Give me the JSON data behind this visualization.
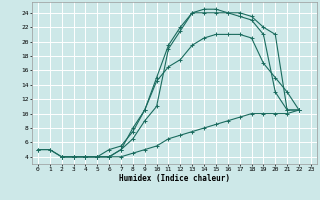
{
  "xlabel": "Humidex (Indice chaleur)",
  "background_color": "#cde8e8",
  "grid_color": "#ffffff",
  "line_color": "#1a6b5e",
  "xlim": [
    -0.5,
    23.5
  ],
  "ylim": [
    3,
    25.5
  ],
  "xticks": [
    0,
    1,
    2,
    3,
    4,
    5,
    6,
    7,
    8,
    9,
    10,
    11,
    12,
    13,
    14,
    15,
    16,
    17,
    18,
    19,
    20,
    21,
    22,
    23
  ],
  "yticks": [
    4,
    6,
    8,
    10,
    12,
    14,
    16,
    18,
    20,
    22,
    24
  ],
  "lines": [
    {
      "x": [
        0,
        1,
        2,
        3,
        4,
        5,
        6,
        7,
        8,
        9,
        10,
        11,
        12,
        13,
        14,
        15,
        16,
        17,
        18,
        19,
        20,
        21,
        22
      ],
      "y": [
        5,
        5,
        4,
        4,
        4,
        4,
        4,
        5,
        6.5,
        9,
        11,
        19,
        21.5,
        24,
        24,
        24,
        24,
        24,
        23.5,
        22,
        21,
        10.5,
        10.5
      ]
    },
    {
      "x": [
        2,
        3,
        4,
        5,
        6,
        7,
        8,
        9,
        10,
        11,
        12,
        13,
        14,
        15,
        16,
        17,
        18,
        19,
        20,
        21,
        22
      ],
      "y": [
        4,
        4,
        4,
        4,
        4,
        5,
        8,
        10.5,
        15,
        19.5,
        22,
        24,
        24.5,
        24.5,
        24,
        23.5,
        23,
        21,
        13,
        10.5,
        10.5
      ]
    },
    {
      "x": [
        2,
        3,
        4,
        5,
        6,
        7,
        8,
        9,
        10,
        11,
        12,
        13,
        14,
        15,
        16,
        17,
        18,
        19,
        20,
        21,
        22
      ],
      "y": [
        4,
        4,
        4,
        4,
        5,
        5.5,
        7.5,
        10.5,
        14.5,
        16.5,
        17.5,
        19.5,
        20.5,
        21,
        21,
        21,
        20.5,
        17,
        15,
        13,
        10.5
      ]
    },
    {
      "x": [
        0,
        1,
        2,
        3,
        4,
        5,
        6,
        7,
        8,
        9,
        10,
        11,
        12,
        13,
        14,
        15,
        16,
        17,
        18,
        19,
        20,
        21,
        22
      ],
      "y": [
        5,
        5,
        4,
        4,
        4,
        4,
        4,
        4,
        4.5,
        5,
        5.5,
        6.5,
        7,
        7.5,
        8,
        8.5,
        9,
        9.5,
        10,
        10,
        10,
        10,
        10.5
      ]
    }
  ]
}
